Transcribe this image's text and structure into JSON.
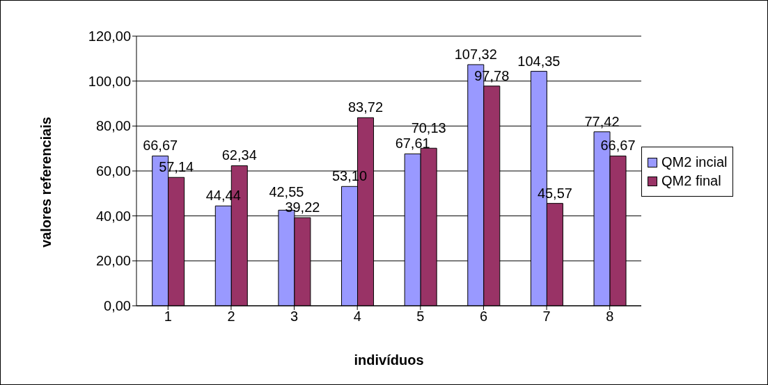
{
  "chart_data": {
    "type": "bar",
    "xlabel": "indivíduos",
    "ylabel": "valores referenciais",
    "categories": [
      "1",
      "2",
      "3",
      "4",
      "5",
      "6",
      "7",
      "8"
    ],
    "series": [
      {
        "name": "QM2 incial",
        "color": "#9999ff",
        "values": [
          66.67,
          44.44,
          42.55,
          53.1,
          67.61,
          107.32,
          104.35,
          77.42
        ],
        "value_labels": [
          "66,67",
          "44,44",
          "42,55",
          "53,10",
          "67,61",
          "107,32",
          "104,35",
          "77,42"
        ]
      },
      {
        "name": "QM2 final",
        "color": "#993366",
        "values": [
          57.14,
          62.34,
          39.22,
          83.72,
          70.13,
          97.78,
          45.57,
          66.67
        ],
        "value_labels": [
          "57,14",
          "62,34",
          "39,22",
          "83,72",
          "70,13",
          "97,78",
          "45,57",
          "66,67"
        ]
      }
    ],
    "ylim": [
      0,
      120
    ],
    "yticks": [
      {
        "value": 0,
        "label": "0,00"
      },
      {
        "value": 20,
        "label": "20,00"
      },
      {
        "value": 40,
        "label": "40,00"
      },
      {
        "value": 60,
        "label": "60,00"
      },
      {
        "value": 80,
        "label": "80,00"
      },
      {
        "value": 100,
        "label": "100,00"
      },
      {
        "value": 120,
        "label": "120,00"
      }
    ],
    "grid": "y",
    "legend": "right"
  }
}
